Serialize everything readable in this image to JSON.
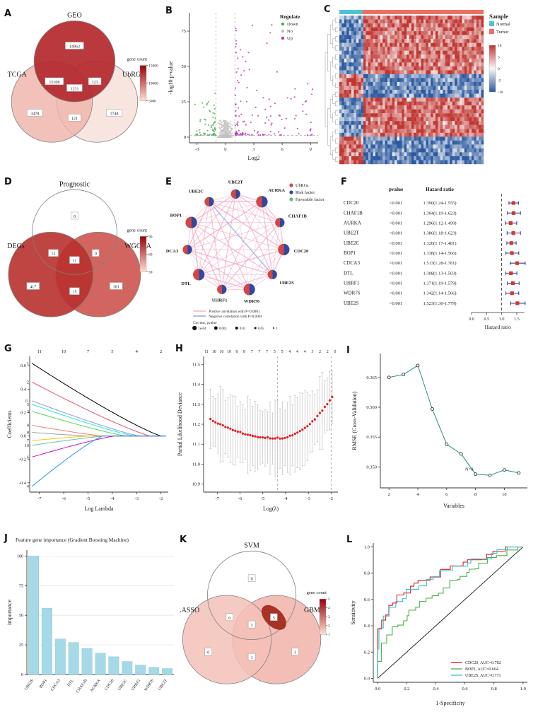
{
  "labels": {
    "A": "A",
    "B": "B",
    "C": "C",
    "D": "D",
    "E": "E",
    "F": "F",
    "G": "G",
    "H": "H",
    "I": "I",
    "J": "J",
    "K": "K",
    "L": "L"
  },
  "chart_data": [
    {
      "id": "A",
      "type": "venn",
      "sets": [
        {
          "name": "GEO",
          "pos": "top",
          "fill": "#b3282d",
          "opacity": 0.92
        },
        {
          "name": "TCGA",
          "pos": "left",
          "fill": "#efb3a9",
          "opacity": 0.8
        },
        {
          "name": "UbRGs",
          "pos": "right",
          "fill": "#f8ded7",
          "opacity": 0.8
        }
      ],
      "counts": {
        "top": "14963",
        "left": "3478",
        "right": "1748",
        "top_left": "15108",
        "top_right": "123",
        "left_right": "121",
        "center": "1231"
      },
      "legend": {
        "title": "gene count",
        "ticks": [
          "15000",
          "10000",
          "5000"
        ],
        "top_color": "#99000d",
        "bottom_color": "#fee0d2"
      }
    },
    {
      "id": "B",
      "type": "volcano",
      "legend_title": "Regulate",
      "groups": [
        {
          "name": "Down",
          "color": "#55a858",
          "n": 60
        },
        {
          "name": "No",
          "color": "#c2c2c2",
          "n": 320
        },
        {
          "name": "Up",
          "color": "#b43bb1",
          "n": 130
        }
      ],
      "xlabel": "Log2",
      "ylabel": "-log10 p-value",
      "xticks": [
        "-3",
        "0",
        "3",
        "6",
        "9"
      ],
      "yticks": [
        "0",
        "25",
        "50",
        "75"
      ],
      "xlim": [
        -3.8,
        9.8
      ],
      "ylim": [
        -4,
        88
      ],
      "vlines": [
        -1,
        1
      ],
      "hline": 1.3
    },
    {
      "id": "C",
      "type": "heatmap",
      "legend_title": "Sample",
      "classes": [
        {
          "name": "Normal",
          "color": "#4fc3d5"
        },
        {
          "name": "Tumor",
          "color": "#ec7063"
        }
      ],
      "scale_ticks": [
        "10",
        "5",
        "0",
        "-5",
        "-10"
      ],
      "pos_color": "#c13530",
      "neg_color": "#2c5aa0",
      "grid": {
        "cols": 60,
        "rows": 38,
        "normal_frac": 0.16,
        "blocks": [
          [
            0.4,
            1
          ],
          [
            0.16,
            -1
          ],
          [
            0.26,
            1
          ],
          [
            0.18,
            -1
          ]
        ]
      }
    },
    {
      "id": "D",
      "type": "venn",
      "sets": [
        {
          "name": "Prognostic",
          "pos": "top",
          "fill": "#ffffff",
          "opacity": 0
        },
        {
          "name": "DEGs",
          "pos": "left",
          "fill": "#b8312f",
          "opacity": 0.9
        },
        {
          "name": "WGCNA",
          "pos": "right",
          "fill": "#ca4a44",
          "opacity": 0.85
        }
      ],
      "counts": {
        "top": "0",
        "left": "417",
        "right": "101",
        "top_left": "12",
        "top_right": "0",
        "left_right": "15",
        "center": "11"
      },
      "legend": {
        "title": "gene count",
        "ticks": [
          "90",
          "60",
          "30"
        ],
        "top_color": "#99000d",
        "bottom_color": "#fee0d2"
      }
    },
    {
      "id": "E",
      "type": "network",
      "nodes": [
        "UBE2T",
        "AURKA",
        "CHAF1B",
        "CDC20",
        "UBE2S",
        "WDR76",
        "UHRF1",
        "DTL",
        "CDCA3",
        "BOP1",
        "UBE2C"
      ],
      "node_colors": [
        "#d64541",
        "#34479e"
      ],
      "label_color": "#c0392b",
      "edge_color": "#f2a0bd",
      "neg_edge_color": "#7c9bd9",
      "legend": [
        {
          "name": "UbRGs",
          "color": "#d64541"
        },
        {
          "name": "Risk factor",
          "color": "#34479e"
        },
        {
          "name": "Favorable factor",
          "color": "#5dbe7f"
        }
      ],
      "line_legend": [
        {
          "name": "Postive correlation with P<0.0001",
          "color": "#f2a0bd"
        },
        {
          "name": "Negative correlation with P<0.0001",
          "color": "#7c9bd9"
        }
      ],
      "size_legend": {
        "title": "Cor test, pvalue",
        "labels": [
          "1e-04",
          "0.001",
          "0.01",
          "0.05",
          "1"
        ]
      }
    },
    {
      "id": "F",
      "type": "forest",
      "headers": [
        "pvalue",
        "Hazard ratio"
      ],
      "rows": [
        {
          "gene": "CDC20",
          "pvalue": "<0.001",
          "text": "1.390(1.24-1.555)",
          "est": 1.39,
          "lo": 1.24,
          "hi": 1.555
        },
        {
          "gene": "CHAF1B",
          "pvalue": "<0.001",
          "text": "1.394(1.19-1.623)",
          "est": 1.394,
          "lo": 1.19,
          "hi": 1.623
        },
        {
          "gene": "AURKA",
          "pvalue": "<0.001",
          "text": "1.296(1.12-1.499)",
          "est": 1.296,
          "lo": 1.12,
          "hi": 1.499
        },
        {
          "gene": "UBE2T",
          "pvalue": "<0.001",
          "text": "1.386(1.18-1.623)",
          "est": 1.386,
          "lo": 1.18,
          "hi": 1.623
        },
        {
          "gene": "UBE2C",
          "pvalue": "<0.001",
          "text": "1.320(1.17-1.481)",
          "est": 1.32,
          "lo": 1.17,
          "hi": 1.481
        },
        {
          "gene": "BOP1",
          "pvalue": "<0.001",
          "text": "1.338(1.14-1.566)",
          "est": 1.338,
          "lo": 1.14,
          "hi": 1.566
        },
        {
          "gene": "CDCA3",
          "pvalue": "<0.001",
          "text": "1.513(1.28-1.781)",
          "est": 1.513,
          "lo": 1.28,
          "hi": 1.781
        },
        {
          "gene": "DTL",
          "pvalue": "<0.001",
          "text": "1.308(1.13-1.503)",
          "est": 1.308,
          "lo": 1.13,
          "hi": 1.503
        },
        {
          "gene": "UHRF1",
          "pvalue": "<0.001",
          "text": "1.371(1.19-1.579)",
          "est": 1.371,
          "lo": 1.19,
          "hi": 1.579
        },
        {
          "gene": "WDR76",
          "pvalue": "<0.001",
          "text": "1.342(1.14-1.566)",
          "est": 1.342,
          "lo": 1.14,
          "hi": 1.566
        },
        {
          "gene": "UBE2S",
          "pvalue": "<0.001",
          "text": "1.523(1.30-1.779)",
          "est": 1.523,
          "lo": 1.3,
          "hi": 1.779
        }
      ],
      "axis": {
        "ticks": [
          "0.0",
          "0.5",
          "1.0",
          "1.5"
        ],
        "label": "Hazard ratio",
        "ref": "1.0"
      }
    },
    {
      "id": "G",
      "type": "lasso",
      "xlabel": "Log Lambda",
      "ylabel": "Coefficients",
      "xticks": [
        "-7",
        "-6",
        "-5",
        "-4",
        "-3",
        "-2"
      ],
      "yticks": [
        "-0.4",
        "-0.2",
        "0.0",
        "0.2",
        "0.4",
        "0.6"
      ],
      "top_counts": [
        "11",
        "10",
        "7",
        "5",
        "4",
        "2"
      ],
      "series": [
        {
          "label": "1",
          "start": 0.62,
          "zero": -2.0,
          "color": "#000000"
        },
        {
          "label": "2",
          "start": 0.46,
          "zero": -2.45,
          "color": "#df536b"
        },
        {
          "label": "11",
          "start": 0.3,
          "zero": -2.9,
          "color": "#8da0cb"
        },
        {
          "label": "5",
          "start": 0.27,
          "zero": -3.1,
          "color": "#28e2e5"
        },
        {
          "label": "3",
          "start": 0.21,
          "zero": -3.45,
          "color": "#61d04f"
        },
        {
          "label": "9",
          "start": 0.09,
          "zero": -4.4,
          "color": "#f08080"
        },
        {
          "label": "8",
          "start": 0.03,
          "zero": -5.0,
          "color": "#9e9e9e"
        },
        {
          "label": "7",
          "start": -0.04,
          "zero": -4.9,
          "color": "#f5c710"
        },
        {
          "label": "10",
          "start": -0.08,
          "zero": -4.3,
          "color": "#66c2a5"
        },
        {
          "label": "6",
          "start": -0.18,
          "zero": -3.9,
          "color": "#cd0bbc"
        },
        {
          "label": "4",
          "start": -0.43,
          "zero": -4.4,
          "color": "#2297e6"
        }
      ]
    },
    {
      "id": "H",
      "type": "deviance",
      "xlabel": "Log(λ)",
      "ylabel": "Partial Likelihood Deviance",
      "xticks": [
        "-7",
        "-6",
        "-5",
        "-4",
        "-3",
        "-2"
      ],
      "yticks": [
        "10.9",
        "11.0",
        "11.1",
        "11.2",
        "11.3",
        "11.4",
        "11.5"
      ],
      "top_counts": [
        "11",
        "10",
        "10",
        "10",
        "8",
        "8",
        "7",
        "7",
        "7",
        "5",
        "5",
        "4",
        "4",
        "4",
        "3",
        "2",
        "2",
        "0"
      ],
      "curve": {
        "x0": -7.3,
        "x1": -1.95,
        "n": 50,
        "xmin": -4.35,
        "ymin": 11.13,
        "a_left": 0.011,
        "a_right": 0.036,
        "err": 0.16
      },
      "vlines": [
        -4.35,
        -2.0
      ]
    },
    {
      "id": "I",
      "type": "rmse",
      "xlabel": "Variables",
      "ylabel": "RMSE (Cross-Validation)",
      "x": [
        2,
        3,
        4,
        5,
        6,
        7,
        8,
        9,
        10,
        11
      ],
      "y": [
        0.365,
        0.3655,
        0.367,
        0.3597,
        0.3538,
        0.3522,
        0.3488,
        0.3486,
        0.3495,
        0.349
      ],
      "xticks": [
        "2",
        "4",
        "6",
        "8",
        "10"
      ],
      "yticks": [
        "0.350",
        "0.355",
        "0.360",
        "0.365"
      ],
      "line_color": "#2b8c89",
      "annotation": {
        "text": "N=8",
        "x": 8,
        "y": 0.3488,
        "color": "#ef7fae"
      }
    },
    {
      "id": "J",
      "type": "bars",
      "title": "Feature gene importance (Gradient Boosting Machine)",
      "ylabel": "importance",
      "yticks": [
        "0",
        "25",
        "50",
        "75",
        "100"
      ],
      "categories": [
        "UBE2S",
        "BOP1",
        "CDCA3",
        "DTL",
        "CHAF1B",
        "AURKA",
        "CDC20",
        "UBE2C",
        "UHRF1",
        "WDR76",
        "UBE2T"
      ],
      "values": [
        100,
        56,
        30,
        27,
        22,
        18,
        15,
        11,
        8,
        6,
        5
      ],
      "bar_color": "#a6d9e8"
    },
    {
      "id": "K",
      "type": "venn",
      "sets": [
        {
          "name": "SVM",
          "pos": "top",
          "fill": "#ffffff",
          "opacity": 0
        },
        {
          "name": "LASSO",
          "pos": "left",
          "fill": "#f3c1b9",
          "opacity": 0.85
        },
        {
          "name": "GBM",
          "pos": "right",
          "fill": "#f1b3a9",
          "opacity": 0.85
        }
      ],
      "counts": {
        "top": "0",
        "left": "0",
        "right": "1",
        "top_left": "0",
        "top_right": "5",
        "left_right": "1",
        "center": "3"
      },
      "highlight": {
        "region": "top_right",
        "color": "#a93226"
      },
      "legend": {
        "title": "gene count",
        "ticks": [
          "5",
          "4",
          "3",
          "2",
          "1"
        ],
        "top_color": "#99000d",
        "bottom_color": "#fee0d2"
      }
    },
    {
      "id": "L",
      "type": "roc",
      "xlabel": "1-Specificity",
      "ylabel": "Sensitivity",
      "ticks": [
        "0.0",
        "0.2",
        "0.4",
        "0.6",
        "0.8",
        "1.0"
      ],
      "series": [
        {
          "label": "CDC20, AUC=0.782",
          "auc": 0.782,
          "color": "#e41a1c"
        },
        {
          "label": "BOP1, AUC=0.664",
          "auc": 0.664,
          "color": "#4daf4a"
        },
        {
          "label": "UBE2S, AUC=0.771",
          "auc": 0.771,
          "color": "#3dbfcf"
        }
      ]
    }
  ]
}
